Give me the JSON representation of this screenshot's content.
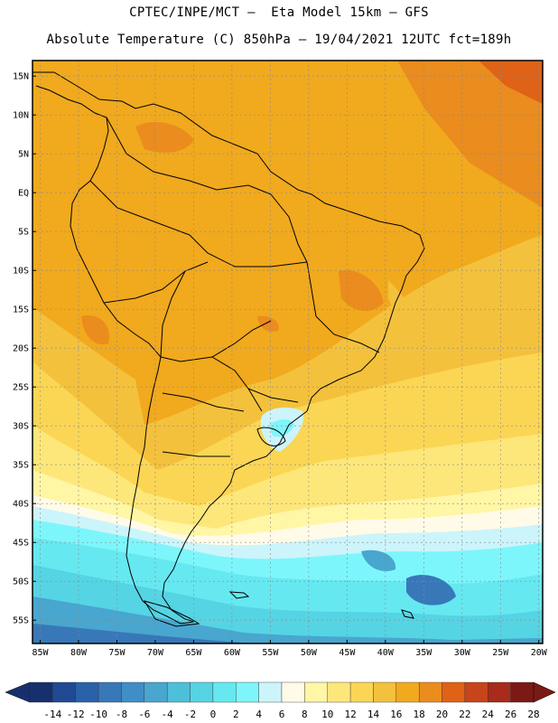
{
  "header": {
    "line1": "CPTEC/INPE/MCT –  Eta Model 15km – GFS",
    "line2": "Absolute Temperature (C) 850hPa – 19/04/2021 12UTC fct=189h"
  },
  "map": {
    "lon_range": [
      -86,
      -19.5
    ],
    "lat_range": [
      -58,
      17
    ],
    "lat_labels": [
      "15N",
      "10N",
      "5N",
      "EQ",
      "5S",
      "10S",
      "15S",
      "20S",
      "25S",
      "30S",
      "35S",
      "40S",
      "45S",
      "50S",
      "55S"
    ],
    "lat_values": [
      15,
      10,
      5,
      0,
      -5,
      -10,
      -15,
      -20,
      -25,
      -30,
      -35,
      -40,
      -45,
      -50,
      -55
    ],
    "lon_labels": [
      "85W",
      "80W",
      "75W",
      "70W",
      "65W",
      "60W",
      "55W",
      "50W",
      "45W",
      "40W",
      "35W",
      "30W",
      "25W",
      "20W"
    ],
    "lon_values": [
      -85,
      -80,
      -75,
      -70,
      -65,
      -60,
      -55,
      -50,
      -45,
      -40,
      -35,
      -30,
      -25,
      -20
    ]
  },
  "colorbar": {
    "labels": [
      "-14",
      "-12",
      "-10",
      "-8",
      "-6",
      "-4",
      "-2",
      "0",
      "2",
      "4",
      "6",
      "8",
      "10",
      "12",
      "14",
      "16",
      "18",
      "20",
      "22",
      "24",
      "26",
      "28"
    ],
    "colors": [
      "#16306e",
      "#1f4a93",
      "#2a62aa",
      "#3878b8",
      "#3f8fc6",
      "#48a6cf",
      "#4ebfd8",
      "#55d4e4",
      "#66e8f0",
      "#7df6fb",
      "#ccf4fb",
      "#fffbe8",
      "#fff6a6",
      "#fde77a",
      "#fbd654",
      "#f4c13c",
      "#f1a91d",
      "#ea8c1e",
      "#df6216",
      "#c8441a",
      "#a82b1b",
      "#7b1a14"
    ],
    "under_color": "#16306e",
    "over_color": "#7b1a14"
  }
}
